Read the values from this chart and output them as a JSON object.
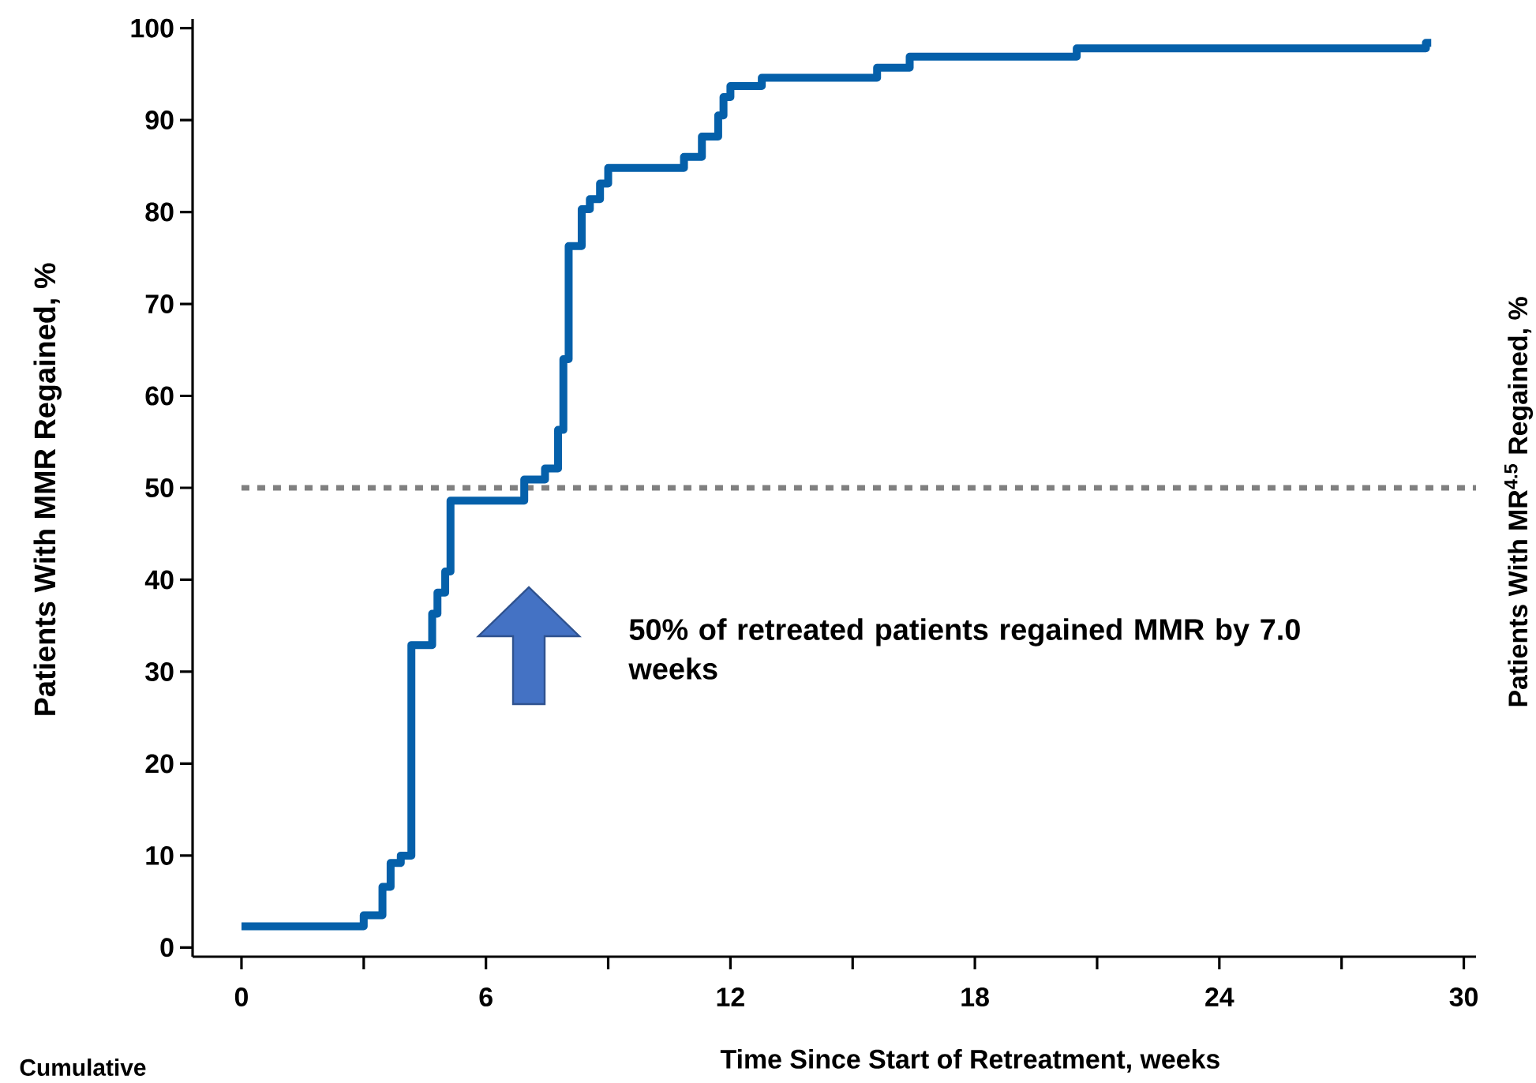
{
  "chart_data": {
    "type": "step",
    "xlabel": "Time Since Start of Retreatment, weeks",
    "ylabel": "Patients With MMR Regained, %",
    "x": [
      0,
      3.0,
      3.46,
      3.66,
      3.91,
      4.17,
      4.68,
      4.81,
      5.0,
      5.13,
      6.94,
      7.45,
      7.77,
      7.9,
      8.03,
      8.35,
      8.55,
      8.8,
      9.0,
      10.86,
      11.3,
      11.7,
      11.83,
      12.0,
      12.77,
      15.6,
      16.4,
      20.5,
      29.07,
      29.2
    ],
    "values": [
      2.3,
      3.5,
      6.6,
      9.2,
      10.0,
      32.9,
      36.3,
      38.6,
      40.9,
      48.6,
      50.9,
      52.1,
      56.3,
      64.0,
      76.3,
      80.3,
      81.4,
      83.1,
      84.8,
      86.0,
      88.2,
      90.5,
      92.5,
      93.7,
      94.6,
      95.7,
      96.9,
      97.8,
      98.4,
      98.4
    ],
    "color": "#0560aa",
    "xlim": [
      -1.2,
      30.3
    ],
    "ylim": [
      -1,
      101
    ],
    "xticks": [
      0,
      {
        "value": 3,
        "label": null
      },
      6,
      {
        "value": 9,
        "label": null
      },
      12,
      {
        "value": 15,
        "label": null
      },
      18,
      {
        "value": 21,
        "label": null
      },
      24,
      {
        "value": 27,
        "label": null
      },
      30
    ],
    "yticks": [
      0,
      10,
      20,
      30,
      40,
      50,
      60,
      70,
      80,
      90,
      100
    ],
    "ref_lines": [
      {
        "axis": "y",
        "value": 50,
        "label": null,
        "color": "#808080",
        "line_style": "dotted"
      }
    ],
    "annotations": [
      "50% of retreated patients regained MMR by 7.0 weeks",
      "Cumulative",
      "Patients With MR$^{4.5}$ Regained, %"
    ]
  }
}
